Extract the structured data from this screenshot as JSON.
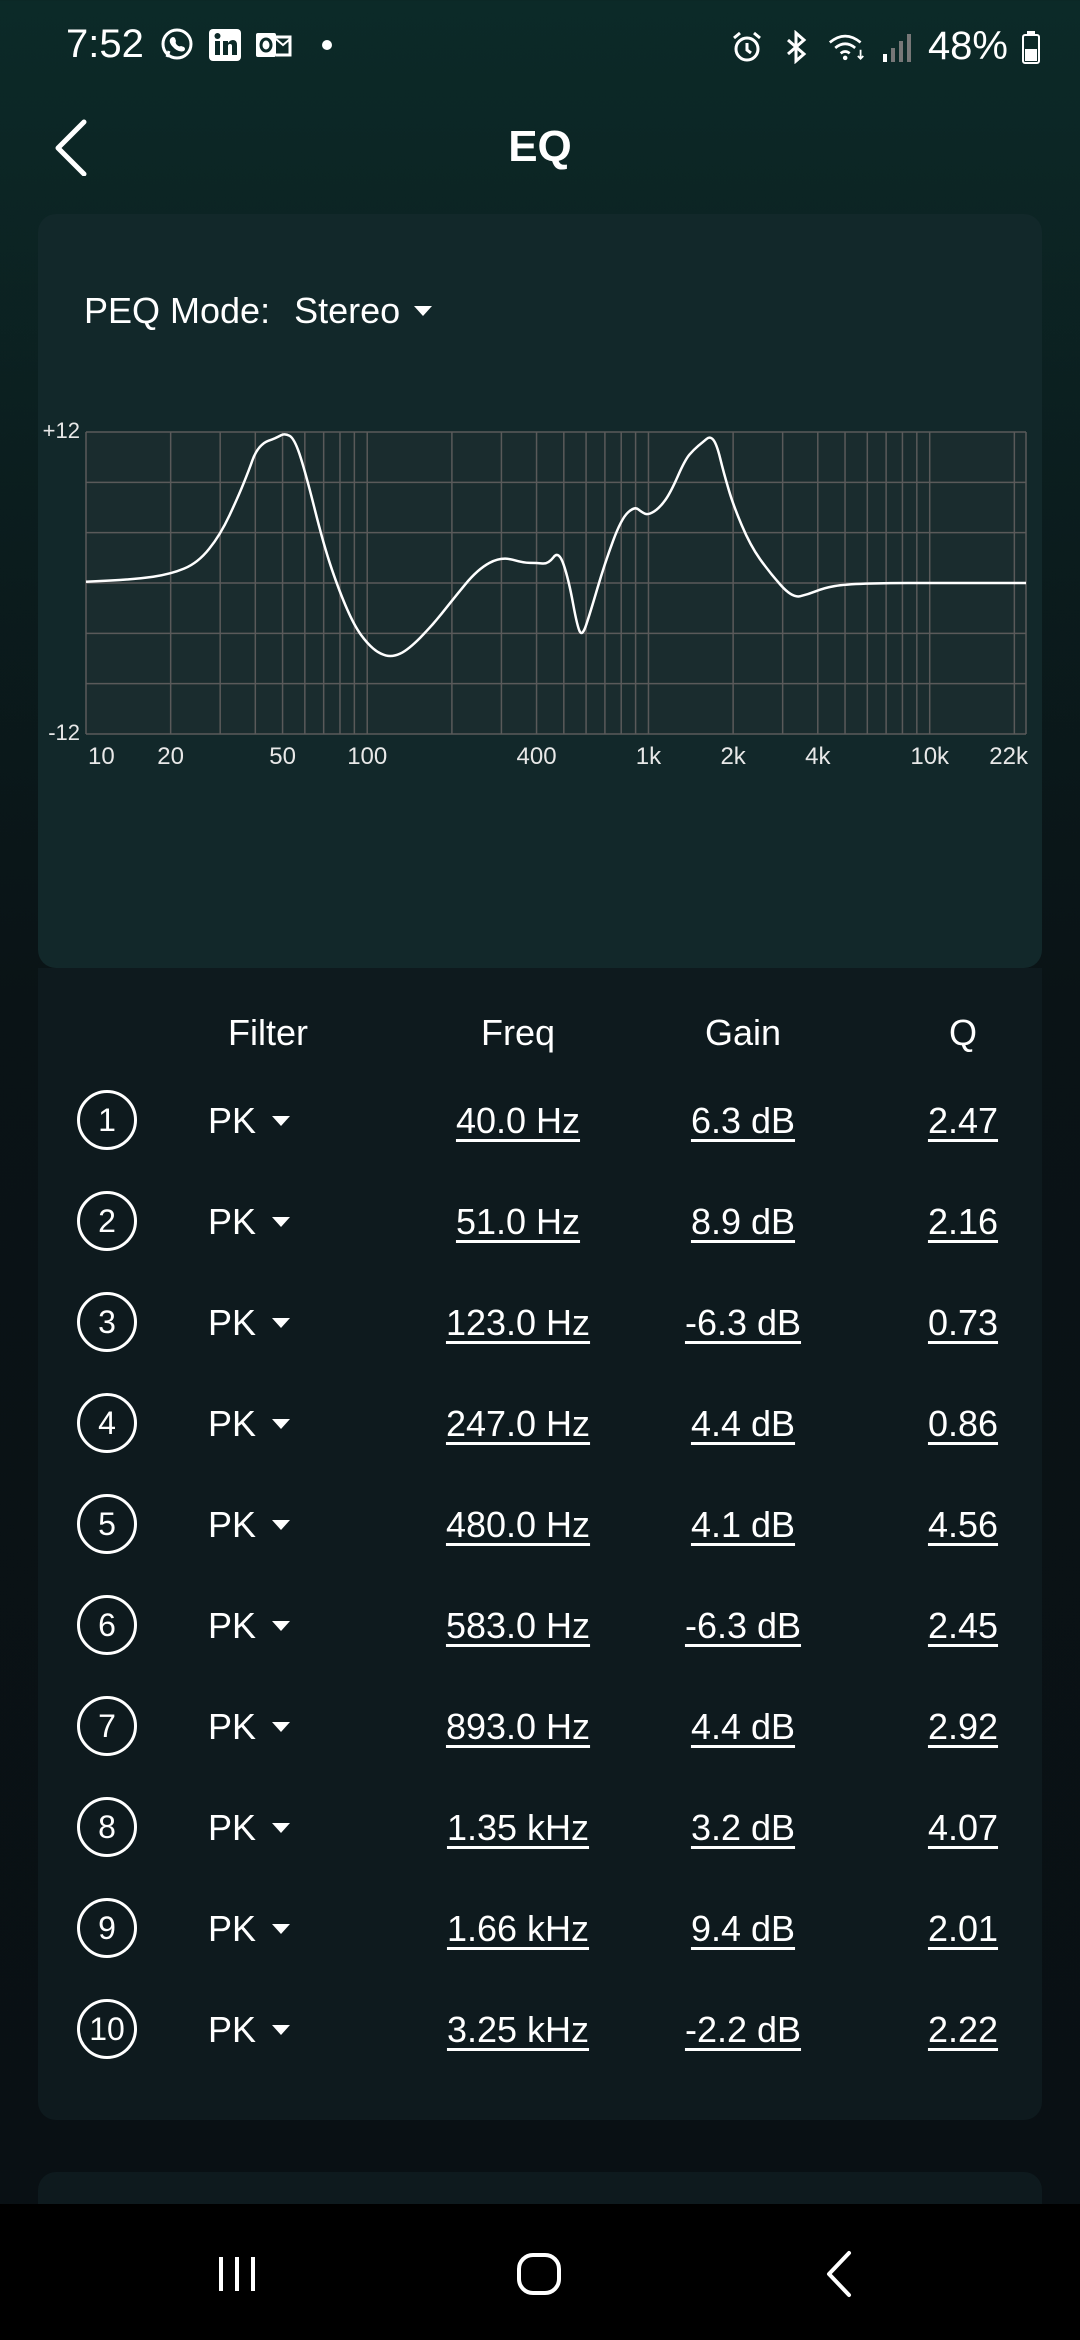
{
  "status_bar": {
    "time": "7:52",
    "battery": "48%",
    "left_icons": [
      "viber-icon",
      "linkedin-icon",
      "outlook-icon"
    ],
    "right_icons": [
      "alarm-icon",
      "bluetooth-icon",
      "wifi-icon",
      "signal-icon",
      "battery-icon"
    ]
  },
  "header": {
    "title": "EQ",
    "back_icon": "chevron-left-icon"
  },
  "peq": {
    "label": "PEQ Mode:",
    "value": "Stereo"
  },
  "chart_data": {
    "type": "line",
    "title": "",
    "x_scale": "log",
    "x_ticks": [
      "10",
      "20",
      "50",
      "100",
      "400",
      "1k",
      "2k",
      "4k",
      "10k",
      "22k"
    ],
    "x_tick_values": [
      10,
      20,
      50,
      100,
      400,
      1000,
      2000,
      4000,
      10000,
      22000
    ],
    "xlim": [
      10,
      22000
    ],
    "y_ticks": [
      "+12",
      "-12"
    ],
    "ylim": [
      -12,
      12
    ],
    "grid": true,
    "series": [
      {
        "x": [
          10,
          15,
          20,
          25,
          30,
          35,
          38,
          40,
          43,
          46,
          48,
          51,
          55,
          60,
          70,
          80,
          90,
          100,
          110,
          123,
          140,
          170,
          200,
          247,
          300,
          360,
          400,
          440,
          480,
          520,
          560,
          583,
          620,
          700,
          800,
          893,
          950,
          1000,
          1100,
          1200,
          1350,
          1450,
          1560,
          1660,
          1750,
          1850,
          2000,
          2300,
          2700,
          3250,
          3700,
          4200,
          5000,
          7000,
          10000,
          15000,
          22000
        ],
        "values": [
          0.1,
          0.3,
          0.7,
          1.6,
          3.8,
          7.0,
          9.0,
          10.4,
          11.2,
          11.4,
          11.6,
          11.9,
          11.5,
          9.0,
          3.0,
          -0.8,
          -3.4,
          -4.8,
          -5.6,
          -5.9,
          -5.3,
          -3.4,
          -1.4,
          1.1,
          2.1,
          1.6,
          1.6,
          1.5,
          2.6,
          0.3,
          -3.6,
          -4.2,
          -2.4,
          1.6,
          5.1,
          6.1,
          5.6,
          5.4,
          6.0,
          7.2,
          9.8,
          10.6,
          11.2,
          11.7,
          11.0,
          8.8,
          6.2,
          3.0,
          0.8,
          -1.2,
          -0.9,
          -0.4,
          -0.1,
          0.0,
          0.0,
          0.0,
          0.0
        ]
      }
    ]
  },
  "table": {
    "headers": {
      "filter": "Filter",
      "freq": "Freq",
      "gain": "Gain",
      "q": "Q"
    },
    "rows": [
      {
        "num": "1",
        "filter": "PK",
        "freq": "40.0 Hz",
        "gain": "6.3 dB",
        "q": "2.47 "
      },
      {
        "num": "2",
        "filter": "PK",
        "freq": "51.0 Hz",
        "gain": "8.9 dB",
        "q": "2.16 "
      },
      {
        "num": "3",
        "filter": "PK",
        "freq": "123.0 Hz",
        "gain": "-6.3 dB",
        "q": "0.73 "
      },
      {
        "num": "4",
        "filter": "PK",
        "freq": "247.0 Hz",
        "gain": "4.4 dB",
        "q": "0.86 "
      },
      {
        "num": "5",
        "filter": "PK",
        "freq": "480.0 Hz",
        "gain": "4.1 dB",
        "q": "4.56 "
      },
      {
        "num": "6",
        "filter": "PK",
        "freq": "583.0 Hz",
        "gain": "-6.3 dB",
        "q": "2.45 "
      },
      {
        "num": "7",
        "filter": "PK",
        "freq": "893.0 Hz",
        "gain": "4.4 dB",
        "q": "2.92 "
      },
      {
        "num": "8",
        "filter": "PK",
        "freq": "1.35 kHz",
        "gain": "3.2 dB",
        "q": "4.07 "
      },
      {
        "num": "9",
        "filter": "PK",
        "freq": "1.66 kHz",
        "gain": "9.4 dB",
        "q": "2.01 "
      },
      {
        "num": "10",
        "filter": "PK",
        "freq": "3.25 kHz",
        "gain": "-2.2 dB",
        "q": "2.22 "
      }
    ]
  },
  "nav_bar": {
    "icons": [
      "recent-apps-icon",
      "home-icon",
      "back-icon"
    ]
  }
}
